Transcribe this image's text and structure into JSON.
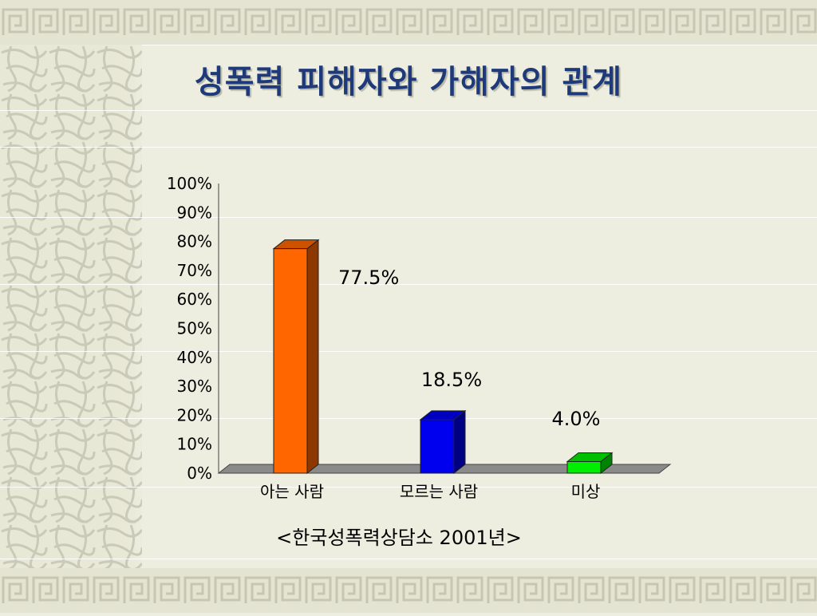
{
  "slide": {
    "title": "성폭력 피해자와 가해자의 관계",
    "source": "<한국성폭력상담소 2001년>"
  },
  "chart_data": {
    "type": "bar",
    "title": "성폭력 피해자와 가해자의 관계",
    "categories": [
      "아는 사람",
      "모르는 사람",
      "미상"
    ],
    "values": [
      77.5,
      18.5,
      4.0
    ],
    "data_labels": [
      "77.5%",
      "18.5%",
      "4.0%"
    ],
    "colors": [
      "#ff6600",
      "#0000ee",
      "#00ee00"
    ],
    "y_ticks": [
      "0%",
      "10%",
      "20%",
      "30%",
      "40%",
      "50%",
      "60%",
      "70%",
      "80%",
      "90%",
      "100%"
    ],
    "ylim": [
      0,
      100
    ],
    "xlabel": "",
    "ylabel": "",
    "grid": false,
    "legend": "none",
    "style": "3d-column"
  }
}
